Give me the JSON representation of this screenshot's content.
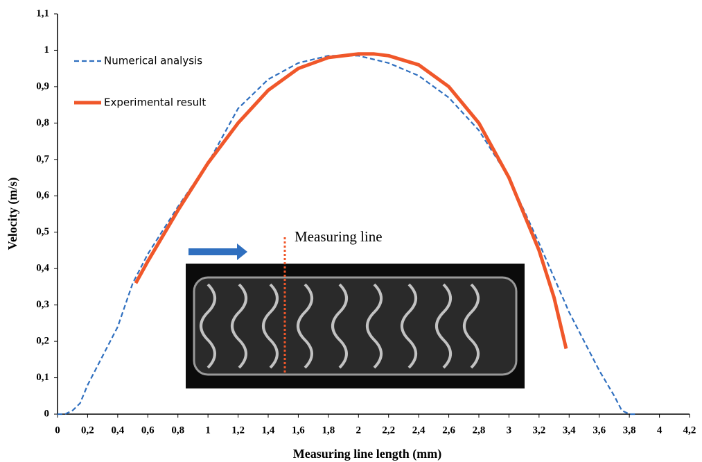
{
  "chart_data": {
    "type": "line",
    "x_label": "Measuring line length (mm)",
    "y_label": "Velocity (m/s)",
    "annotation": "Measuring line",
    "xlim": [
      0,
      4.2
    ],
    "ylim": [
      0,
      1.1
    ],
    "xticks": [
      0,
      {
        "value": 0.2,
        "label": "0,2"
      },
      {
        "value": 0.4,
        "label": "0,4"
      },
      {
        "value": 0.6,
        "label": "0,6"
      },
      {
        "value": 0.8,
        "label": "0,8"
      },
      1,
      {
        "value": 1.2,
        "label": "1,2"
      },
      {
        "value": 1.4,
        "label": "1,4"
      },
      {
        "value": 1.6,
        "label": "1,6"
      },
      {
        "value": 1.8,
        "label": "1,8"
      },
      2,
      {
        "value": 2.2,
        "label": "2,2"
      },
      {
        "value": 2.4,
        "label": "2,4"
      },
      {
        "value": 2.6,
        "label": "2,6"
      },
      {
        "value": 2.8,
        "label": "2,8"
      },
      3,
      {
        "value": 3.2,
        "label": "3,2"
      },
      {
        "value": 3.4,
        "label": "3,4"
      },
      {
        "value": 3.6,
        "label": "3,6"
      },
      {
        "value": 3.8,
        "label": "3,8"
      },
      4,
      {
        "value": 4.2,
        "label": "4,2"
      }
    ],
    "yticks": [
      0,
      {
        "value": 0.1,
        "label": "0,1"
      },
      {
        "value": 0.2,
        "label": "0,2"
      },
      {
        "value": 0.3,
        "label": "0,3"
      },
      {
        "value": 0.4,
        "label": "0,4"
      },
      {
        "value": 0.5,
        "label": "0,5"
      },
      {
        "value": 0.6,
        "label": "0,6"
      },
      {
        "value": 0.7,
        "label": "0,7"
      },
      {
        "value": 0.8,
        "label": "0,8"
      },
      {
        "value": 0.9,
        "label": "0,9"
      },
      1,
      {
        "value": 1.1,
        "label": "1,1"
      }
    ],
    "series": [
      {
        "name": "Numerical analysis",
        "color": "#2f6fbf",
        "dashed": true,
        "x": [
          0,
          0.05,
          0.1,
          0.15,
          0.2,
          0.4,
          0.5,
          0.6,
          0.8,
          1.0,
          1.2,
          1.4,
          1.6,
          1.8,
          2.0,
          2.2,
          2.4,
          2.6,
          2.8,
          3.0,
          3.2,
          3.4,
          3.6,
          3.7,
          3.75,
          3.8,
          3.85
        ],
        "values": [
          0,
          0,
          0.01,
          0.03,
          0.08,
          0.24,
          0.36,
          0.44,
          0.57,
          0.69,
          0.84,
          0.92,
          0.965,
          0.985,
          0.985,
          0.965,
          0.93,
          0.87,
          0.78,
          0.65,
          0.47,
          0.28,
          0.12,
          0.05,
          0.01,
          0,
          0
        ]
      },
      {
        "name": "Experimental result",
        "color": "#f0572a",
        "dashed": false,
        "x": [
          0.52,
          0.6,
          0.8,
          1.0,
          1.2,
          1.4,
          1.6,
          1.8,
          2.0,
          2.1,
          2.2,
          2.4,
          2.6,
          2.8,
          3.0,
          3.2,
          3.3,
          3.38
        ],
        "values": [
          0.36,
          0.42,
          0.56,
          0.69,
          0.8,
          0.89,
          0.95,
          0.98,
          0.99,
          0.99,
          0.985,
          0.96,
          0.9,
          0.8,
          0.65,
          0.45,
          0.32,
          0.18
        ]
      }
    ]
  }
}
